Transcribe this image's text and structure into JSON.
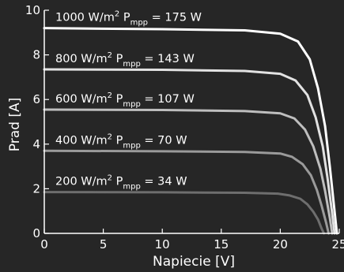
{
  "chart_data": {
    "type": "line",
    "title": "",
    "xlabel": "Napiecie [V]",
    "ylabel": "Prad [A]",
    "xlim": [
      0,
      25
    ],
    "ylim": [
      0,
      10
    ],
    "xticks": [
      0,
      5,
      10,
      15,
      20,
      25
    ],
    "yticks": [
      0,
      2,
      4,
      6,
      8,
      10
    ],
    "grid": false,
    "legend": "none",
    "colors": {
      "background": "#262626",
      "axis": "#ffffff",
      "text": "#ffffff"
    },
    "series": [
      {
        "label_main": "1000 W/m",
        "label_sup": "2",
        "label_p": " P",
        "label_sub": "mpp",
        "label_tail": " = 175 W",
        "color": "#ffffff",
        "x": [
          0,
          10,
          17,
          20,
          21.5,
          22.5,
          23.2,
          23.8,
          24.2,
          24.6,
          24.8
        ],
        "y": [
          9.2,
          9.15,
          9.1,
          8.95,
          8.6,
          7.8,
          6.5,
          4.8,
          3.0,
          1.0,
          0
        ]
      },
      {
        "label_main": "800 W/m",
        "label_sup": "2",
        "label_p": " P",
        "label_sub": "mpp",
        "label_tail": " = 143 W",
        "color": "#e2e2e2",
        "x": [
          0,
          10,
          17,
          20,
          21.3,
          22.3,
          23.0,
          23.6,
          24.0,
          24.4,
          24.6
        ],
        "y": [
          7.35,
          7.33,
          7.28,
          7.15,
          6.85,
          6.2,
          5.2,
          3.9,
          2.5,
          0.9,
          0
        ]
      },
      {
        "label_main": "600 W/m",
        "label_sup": "2",
        "label_p": " P",
        "label_sub": "mpp",
        "label_tail": " = 107 W",
        "color": "#bebebe",
        "x": [
          0,
          10,
          17,
          20,
          21.2,
          22.1,
          22.8,
          23.4,
          23.8,
          24.2,
          24.4
        ],
        "y": [
          5.55,
          5.53,
          5.48,
          5.38,
          5.15,
          4.65,
          3.9,
          2.9,
          1.9,
          0.7,
          0
        ]
      },
      {
        "label_main": "400 W/m",
        "label_sup": "2",
        "label_p": " P",
        "label_sub": "mpp",
        "label_tail": " = 70 W",
        "color": "#9a9a9a",
        "x": [
          0,
          10,
          17,
          20,
          21.0,
          21.9,
          22.6,
          23.1,
          23.5,
          23.9,
          24.1
        ],
        "y": [
          3.7,
          3.68,
          3.65,
          3.58,
          3.43,
          3.1,
          2.6,
          1.95,
          1.25,
          0.45,
          0
        ]
      },
      {
        "label_main": "200 W/m",
        "label_sup": "2",
        "label_p": " P",
        "label_sub": "mpp",
        "label_tail": " = 34 W",
        "color": "#6e6e6e",
        "x": [
          0,
          10,
          17,
          19.8,
          20.8,
          21.7,
          22.3,
          22.8,
          23.2,
          23.5,
          23.7
        ],
        "y": [
          1.85,
          1.84,
          1.82,
          1.78,
          1.7,
          1.55,
          1.3,
          0.97,
          0.62,
          0.22,
          0
        ]
      }
    ]
  }
}
